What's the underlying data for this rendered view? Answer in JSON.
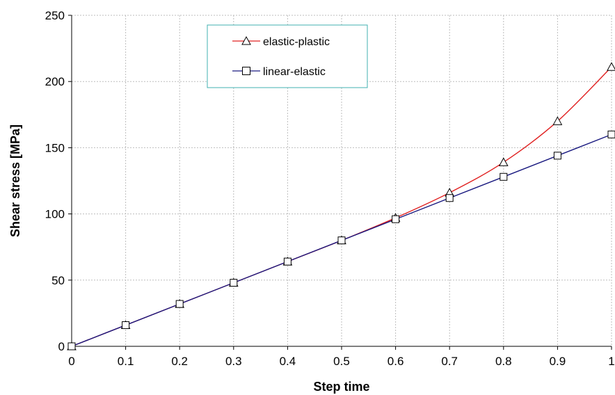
{
  "chart_data": {
    "type": "line",
    "title": "",
    "xlabel": "Step time",
    "ylabel": "Shear stress  [MPa]",
    "xlim": [
      0,
      1
    ],
    "ylim": [
      0,
      250
    ],
    "xticks": [
      "0",
      "0.1",
      "0.2",
      "0.3",
      "0.4",
      "0.5",
      "0.6",
      "0.7",
      "0.8",
      "0.9",
      "1"
    ],
    "yticks": [
      "0",
      "50",
      "100",
      "150",
      "200",
      "250"
    ],
    "grid": true,
    "legend": "top-left",
    "x": [
      0,
      0.1,
      0.2,
      0.3,
      0.4,
      0.5,
      0.6,
      0.7,
      0.8,
      0.9,
      1.0
    ],
    "series": [
      {
        "name": "elastic-plastic",
        "marker": "triangle",
        "color": "#e02020",
        "values": [
          0,
          16,
          32,
          48,
          64,
          80,
          97,
          116,
          139,
          170,
          211
        ]
      },
      {
        "name": "linear-elastic",
        "marker": "square",
        "color": "#1a1a80",
        "values": [
          0,
          16,
          32,
          48,
          64,
          80,
          96,
          112,
          128,
          144,
          160
        ]
      }
    ]
  }
}
